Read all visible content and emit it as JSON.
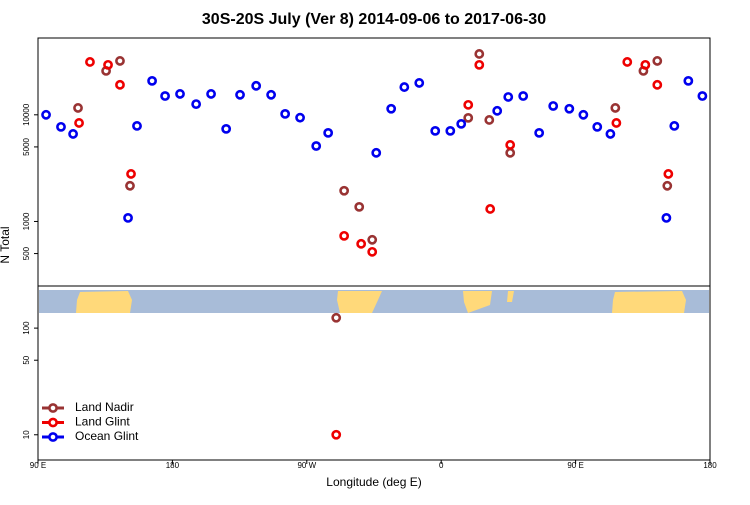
{
  "chart_data": {
    "type": "scatter",
    "title": "30S-20S July (Ver 8)   2014-09-06 to 2017-06-30",
    "xlabel": "Longitude (deg E)",
    "ylabel": "N Total",
    "log_y": true,
    "legend": "lower left",
    "xlim": [
      90,
      540
    ],
    "xticks": [
      {
        "value": 90,
        "label": "90 E"
      },
      {
        "value": 180,
        "label": "180"
      },
      {
        "value": 270,
        "label": "90 W"
      },
      {
        "value": 360,
        "label": "0"
      },
      {
        "value": 450,
        "label": "90 E"
      },
      {
        "value": 540,
        "label": "180"
      }
    ],
    "ylim": [
      5.8,
      52500
    ],
    "yticks": [
      10,
      50,
      100,
      500,
      1000,
      5000,
      10000
    ],
    "series": [
      {
        "name": "Land Nadir",
        "color": "#993333",
        "x": [
          116.8,
          135.6,
          144.9,
          151.6,
          295,
          305.1,
          313.8,
          378.1,
          385.5,
          392.2,
          406.2,
          476.6,
          495.4,
          504.7,
          511.4,
          289.7
        ],
        "values": [
          11600,
          25800,
          32000,
          2160,
          1940,
          1370,
          673,
          9360,
          37200,
          8950,
          4400,
          11600,
          25800,
          32000,
          2160,
          125
        ]
      },
      {
        "name": "Land Glint",
        "color": "#ee0000",
        "x": [
          124.8,
          136.9,
          144.9,
          152.3,
          117.5,
          295,
          306.4,
          313.8,
          378.1,
          385.5,
          392.8,
          406.2,
          477.3,
          484.6,
          496.7,
          504.7,
          512.1,
          289.7
        ],
        "values": [
          31300,
          29400,
          19100,
          2790,
          8390,
          733,
          617,
          519,
          12400,
          29400,
          1310,
          5220,
          8390,
          31300,
          29400,
          19100,
          2790,
          10
        ]
      },
      {
        "name": "Ocean Glint",
        "color": "#0000ee",
        "x": [
          95.4,
          105.4,
          113.5,
          150.3,
          156.3,
          166.4,
          175.1,
          185.1,
          195.9,
          205.9,
          216,
          225.3,
          236.1,
          246.1,
          255.5,
          265.5,
          276.3,
          284.3,
          316.5,
          326.5,
          335.3,
          345.3,
          356,
          366.1,
          373.4,
          397.5,
          404.9,
          414.9,
          425.6,
          435,
          445.8,
          455.2,
          464.5,
          473.3,
          510.8,
          516.1,
          525.5,
          534.9
        ],
        "values": [
          10000,
          7710,
          6620,
          1080,
          7870,
          20800,
          15000,
          15700,
          12600,
          15700,
          7380,
          15400,
          18700,
          15400,
          10200,
          9400,
          5100,
          6770,
          4400,
          11400,
          18200,
          19900,
          7070,
          7070,
          8220,
          10900,
          14700,
          15000,
          6770,
          12100,
          11400,
          10000,
          7710,
          6620,
          1080,
          7870,
          20800,
          15000
        ]
      }
    ]
  }
}
